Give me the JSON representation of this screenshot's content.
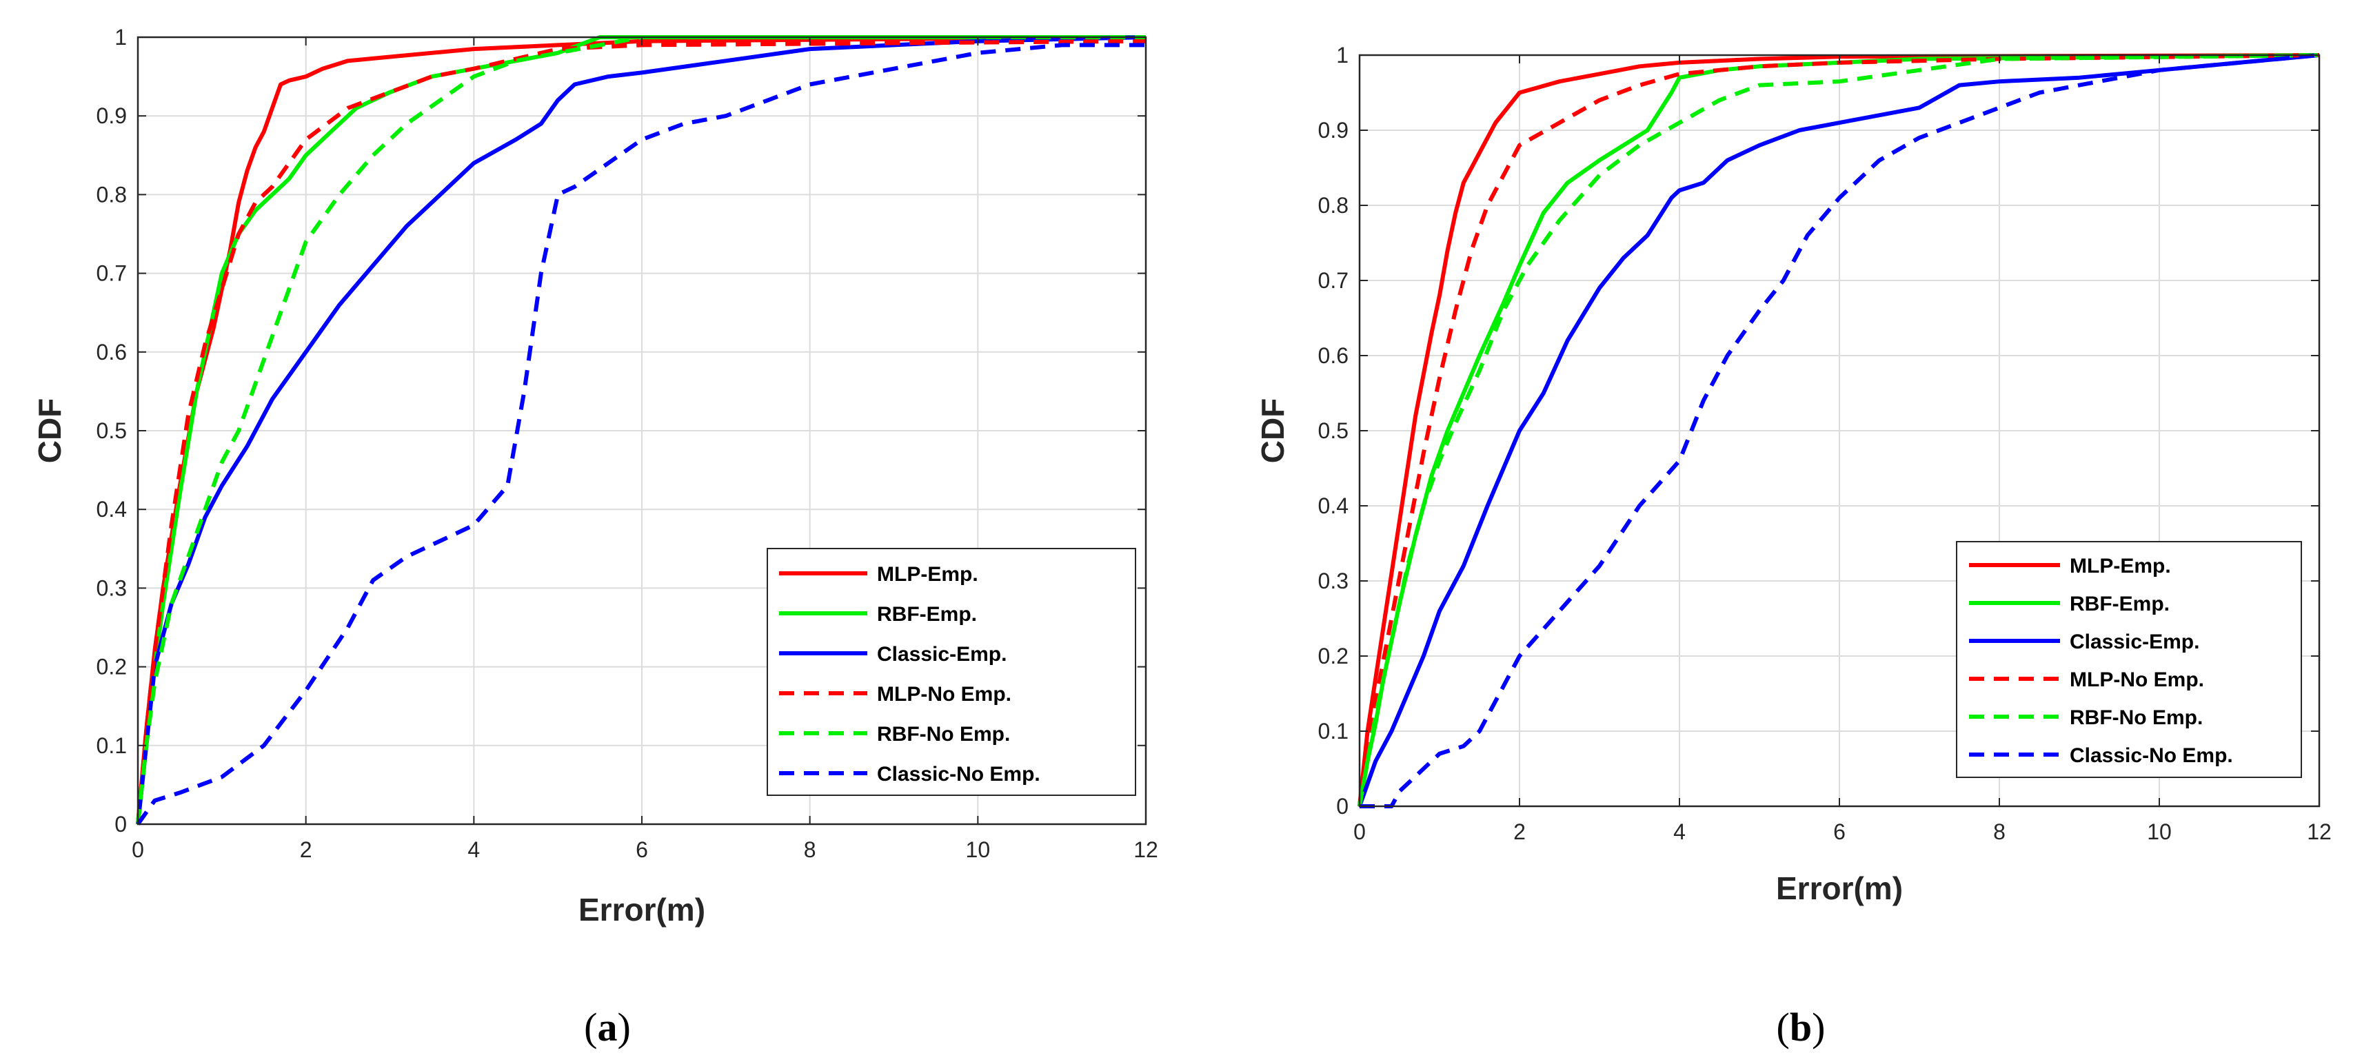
{
  "colors": {
    "red": "#ff0000",
    "green": "#00ee00",
    "blue": "#0000ff",
    "grid": "#dcdcdc",
    "axis": "#262626"
  },
  "chart_data": [
    {
      "type": "line",
      "panel": "a",
      "caption_open": "(",
      "caption_letter": "a",
      "caption_close": ")",
      "title": "",
      "xlabel": "Error(m)",
      "ylabel": "CDF",
      "xlim": [
        0,
        12
      ],
      "ylim": [
        0,
        1
      ],
      "xticks": [
        0,
        2,
        4,
        6,
        8,
        10,
        12
      ],
      "yticks": [
        0,
        0.1,
        0.2,
        0.3,
        0.4,
        0.5,
        0.6,
        0.7,
        0.8,
        0.9,
        1
      ],
      "ytick_labels": [
        "0",
        "0.1",
        "0.2",
        "0.3",
        "0.4",
        "0.5",
        "0.6",
        "0.7",
        "0.8",
        "0.9",
        "1"
      ],
      "grid": true,
      "legend_position": "bottom-right",
      "series": [
        {
          "name": "MLP-Emp.",
          "color": "#ff0000",
          "dash": false,
          "x": [
            0,
            0.1,
            0.2,
            0.3,
            0.5,
            0.7,
            0.9,
            1.0,
            1.1,
            1.2,
            1.3,
            1.4,
            1.5,
            1.6,
            1.7,
            1.8,
            2.0,
            2.2,
            2.5,
            3.0,
            4.0,
            5.0,
            6.0,
            12
          ],
          "y": [
            0,
            0.12,
            0.22,
            0.3,
            0.43,
            0.55,
            0.63,
            0.68,
            0.73,
            0.79,
            0.83,
            0.86,
            0.88,
            0.91,
            0.94,
            0.945,
            0.95,
            0.96,
            0.97,
            0.975,
            0.985,
            0.99,
            0.995,
            1
          ]
        },
        {
          "name": "RBF-Emp.",
          "color": "#00ee00",
          "dash": false,
          "x": [
            0,
            0.1,
            0.2,
            0.3,
            0.5,
            0.7,
            0.9,
            1.0,
            1.2,
            1.4,
            1.6,
            1.8,
            2.0,
            2.3,
            2.6,
            3.0,
            3.5,
            4.0,
            4.5,
            5.0,
            5.5,
            12
          ],
          "y": [
            0,
            0.1,
            0.2,
            0.28,
            0.42,
            0.55,
            0.65,
            0.7,
            0.75,
            0.78,
            0.8,
            0.82,
            0.85,
            0.88,
            0.91,
            0.93,
            0.95,
            0.96,
            0.97,
            0.98,
            1.0,
            1.0
          ]
        },
        {
          "name": "Classic-Emp.",
          "color": "#0000ff",
          "dash": false,
          "x": [
            0,
            0.1,
            0.2,
            0.4,
            0.6,
            0.8,
            1.0,
            1.3,
            1.6,
            2.0,
            2.4,
            2.8,
            3.2,
            3.6,
            4.0,
            4.5,
            4.8,
            5.0,
            5.2,
            5.6,
            6.0,
            7.0,
            8.0,
            9.0,
            10.0,
            12
          ],
          "y": [
            0,
            0.1,
            0.2,
            0.28,
            0.33,
            0.39,
            0.43,
            0.48,
            0.54,
            0.6,
            0.66,
            0.71,
            0.76,
            0.8,
            0.84,
            0.87,
            0.89,
            0.92,
            0.94,
            0.95,
            0.955,
            0.97,
            0.985,
            0.99,
            0.995,
            1
          ]
        },
        {
          "name": "MLP-No Emp.",
          "color": "#ff0000",
          "dash": true,
          "x": [
            0,
            0.1,
            0.2,
            0.4,
            0.6,
            0.8,
            1.0,
            1.2,
            1.4,
            1.6,
            1.8,
            2.0,
            2.5,
            3.0,
            3.5,
            4.0,
            5.0,
            6.0,
            12
          ],
          "y": [
            0,
            0.12,
            0.22,
            0.38,
            0.52,
            0.61,
            0.68,
            0.75,
            0.79,
            0.81,
            0.84,
            0.87,
            0.91,
            0.93,
            0.95,
            0.96,
            0.985,
            0.99,
            0.995
          ]
        },
        {
          "name": "RBF-No Emp.",
          "color": "#00ee00",
          "dash": true,
          "x": [
            0,
            0.1,
            0.2,
            0.4,
            0.6,
            0.8,
            1.0,
            1.2,
            1.4,
            1.6,
            1.8,
            2.0,
            2.4,
            2.8,
            3.2,
            3.6,
            4.0,
            4.5,
            5.0,
            5.5,
            6.0,
            12
          ],
          "y": [
            0,
            0.1,
            0.18,
            0.28,
            0.34,
            0.4,
            0.46,
            0.5,
            0.56,
            0.62,
            0.68,
            0.74,
            0.8,
            0.85,
            0.89,
            0.92,
            0.95,
            0.97,
            0.98,
            0.99,
            1.0,
            1.0
          ]
        },
        {
          "name": "Classic-No Emp.",
          "color": "#0000ff",
          "dash": true,
          "x": [
            0,
            0.2,
            0.5,
            1.0,
            1.5,
            2.0,
            2.5,
            2.8,
            3.2,
            3.6,
            4.0,
            4.4,
            4.6,
            4.8,
            5.0,
            5.2,
            5.6,
            6.0,
            6.5,
            7.0,
            7.5,
            8.0,
            9.0,
            10.0,
            11.0,
            12
          ],
          "y": [
            0,
            0.03,
            0.04,
            0.06,
            0.1,
            0.17,
            0.25,
            0.31,
            0.34,
            0.36,
            0.38,
            0.43,
            0.55,
            0.7,
            0.8,
            0.81,
            0.84,
            0.87,
            0.89,
            0.9,
            0.92,
            0.94,
            0.96,
            0.98,
            0.99,
            0.99
          ]
        }
      ]
    },
    {
      "type": "line",
      "panel": "b",
      "caption_open": "(",
      "caption_letter": "b",
      "caption_close": ")",
      "title": "",
      "xlabel": "Error(m)",
      "ylabel": "CDF",
      "xlim": [
        0,
        12
      ],
      "ylim": [
        0,
        1
      ],
      "xticks": [
        0,
        2,
        4,
        6,
        8,
        10,
        12
      ],
      "yticks": [
        0,
        0.1,
        0.2,
        0.3,
        0.4,
        0.5,
        0.6,
        0.7,
        0.8,
        0.9,
        1
      ],
      "ytick_labels": [
        "0",
        "0.1",
        "0.2",
        "0.3",
        "0.4",
        "0.5",
        "0.6",
        "0.7",
        "0.8",
        "0.9",
        "1"
      ],
      "grid": true,
      "legend_position": "bottom-right",
      "series": [
        {
          "name": "MLP-Emp.",
          "color": "#ff0000",
          "dash": false,
          "x": [
            0,
            0.1,
            0.2,
            0.3,
            0.5,
            0.7,
            0.9,
            1.0,
            1.1,
            1.2,
            1.3,
            1.5,
            1.7,
            2.0,
            2.5,
            3.0,
            3.5,
            4.0,
            5.0,
            6.0,
            12
          ],
          "y": [
            0,
            0.1,
            0.17,
            0.24,
            0.38,
            0.52,
            0.63,
            0.68,
            0.74,
            0.79,
            0.83,
            0.87,
            0.91,
            0.95,
            0.965,
            0.975,
            0.985,
            0.99,
            0.995,
            0.998,
            1
          ]
        },
        {
          "name": "RBF-Emp.",
          "color": "#00ee00",
          "dash": false,
          "x": [
            0,
            0.1,
            0.2,
            0.3,
            0.5,
            0.7,
            0.9,
            1.1,
            1.3,
            1.5,
            1.8,
            2.0,
            2.3,
            2.6,
            3.0,
            3.3,
            3.6,
            3.9,
            4.0,
            4.5,
            5.0,
            6.0,
            7.0,
            12
          ],
          "y": [
            0,
            0.06,
            0.11,
            0.17,
            0.27,
            0.36,
            0.44,
            0.5,
            0.55,
            0.6,
            0.67,
            0.72,
            0.79,
            0.83,
            0.86,
            0.88,
            0.9,
            0.95,
            0.97,
            0.98,
            0.985,
            0.99,
            0.995,
            1
          ]
        },
        {
          "name": "Classic-Emp.",
          "color": "#0000ff",
          "dash": false,
          "x": [
            0,
            0.1,
            0.2,
            0.4,
            0.6,
            0.8,
            1.0,
            1.3,
            1.6,
            2.0,
            2.3,
            2.6,
            3.0,
            3.3,
            3.6,
            3.9,
            4.0,
            4.3,
            4.6,
            5.0,
            5.5,
            6.0,
            7.0,
            7.5,
            8.0,
            9.0,
            10.0,
            11.0,
            12
          ],
          "y": [
            0,
            0.03,
            0.06,
            0.1,
            0.15,
            0.2,
            0.26,
            0.32,
            0.4,
            0.5,
            0.55,
            0.62,
            0.69,
            0.73,
            0.76,
            0.81,
            0.82,
            0.83,
            0.86,
            0.88,
            0.9,
            0.91,
            0.93,
            0.96,
            0.965,
            0.97,
            0.98,
            0.99,
            1
          ]
        },
        {
          "name": "MLP-No Emp.",
          "color": "#ff0000",
          "dash": true,
          "x": [
            0,
            0.1,
            0.2,
            0.4,
            0.6,
            0.8,
            1.0,
            1.2,
            1.4,
            1.6,
            1.8,
            2.0,
            2.5,
            3.0,
            3.5,
            4.0,
            5.0,
            6.0,
            8.0,
            12
          ],
          "y": [
            0,
            0.08,
            0.14,
            0.25,
            0.36,
            0.47,
            0.57,
            0.66,
            0.74,
            0.8,
            0.84,
            0.88,
            0.91,
            0.94,
            0.96,
            0.975,
            0.985,
            0.99,
            0.995,
            1
          ]
        },
        {
          "name": "RBF-No Emp.",
          "color": "#00ee00",
          "dash": true,
          "x": [
            0,
            0.1,
            0.2,
            0.4,
            0.6,
            0.8,
            1.0,
            1.2,
            1.5,
            1.8,
            2.1,
            2.5,
            3.0,
            3.5,
            4.0,
            4.5,
            5.0,
            6.0,
            7.0,
            8.0,
            12
          ],
          "y": [
            0,
            0.06,
            0.12,
            0.22,
            0.32,
            0.4,
            0.46,
            0.51,
            0.58,
            0.66,
            0.72,
            0.78,
            0.84,
            0.88,
            0.91,
            0.94,
            0.96,
            0.965,
            0.98,
            0.995,
            1
          ]
        },
        {
          "name": "Classic-No Emp.",
          "color": "#0000ff",
          "dash": true,
          "x": [
            0,
            0.4,
            0.5,
            0.8,
            1.0,
            1.3,
            1.5,
            1.8,
            2.0,
            2.5,
            3.0,
            3.5,
            4.0,
            4.3,
            4.6,
            5.0,
            5.3,
            5.6,
            6.0,
            6.5,
            7.0,
            7.5,
            8.0,
            8.5,
            9.0,
            10.0,
            11.0,
            12
          ],
          "y": [
            0,
            0.0,
            0.02,
            0.05,
            0.07,
            0.08,
            0.1,
            0.16,
            0.2,
            0.26,
            0.32,
            0.4,
            0.46,
            0.54,
            0.6,
            0.66,
            0.7,
            0.76,
            0.81,
            0.86,
            0.89,
            0.91,
            0.93,
            0.95,
            0.96,
            0.98,
            0.99,
            1.0
          ]
        }
      ]
    }
  ]
}
